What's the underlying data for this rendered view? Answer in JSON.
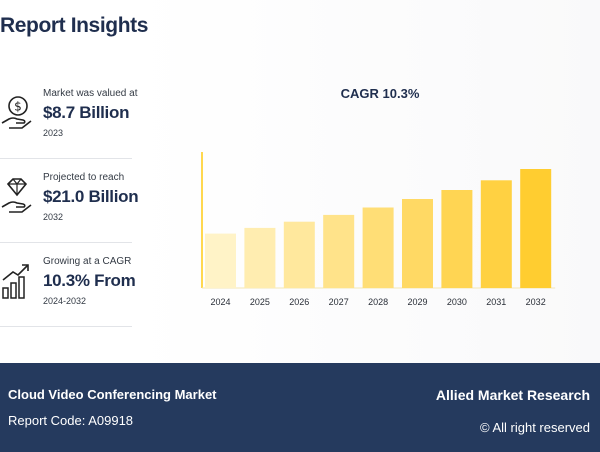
{
  "header": {
    "title": "Report Insights"
  },
  "stats": [
    {
      "label": "Market was valued at",
      "value": "$8.7 Billion",
      "year": "2023",
      "icon": "money-hand-icon"
    },
    {
      "label": "Projected to reach",
      "value": "$21.0 Billion",
      "year": "2032",
      "icon": "diamond-hand-icon"
    },
    {
      "label": "Growing at a CAGR",
      "value": "10.3% From",
      "year": "2024-2032",
      "icon": "growth-chart-icon"
    }
  ],
  "chart_data": {
    "type": "bar",
    "title": "CAGR 10.3%",
    "categories": [
      "2024",
      "2025",
      "2026",
      "2027",
      "2028",
      "2029",
      "2030",
      "2031",
      "2032"
    ],
    "values": [
      9.6,
      10.6,
      11.7,
      12.9,
      14.2,
      15.7,
      17.3,
      19.0,
      21.0
    ],
    "ylim": [
      0,
      24
    ],
    "colors": [
      "#fff3c7",
      "#ffedb0",
      "#ffe89d",
      "#ffe38a",
      "#ffde76",
      "#ffd964",
      "#ffd553",
      "#ffd142",
      "#ffcd30"
    ],
    "axis_color": "#ffd84f",
    "grid": false
  },
  "footer": {
    "market": "Cloud Video Conferencing Market",
    "code": "Report Code: A09918",
    "brand": "Allied Market Research",
    "rights": "© All right reserved"
  }
}
